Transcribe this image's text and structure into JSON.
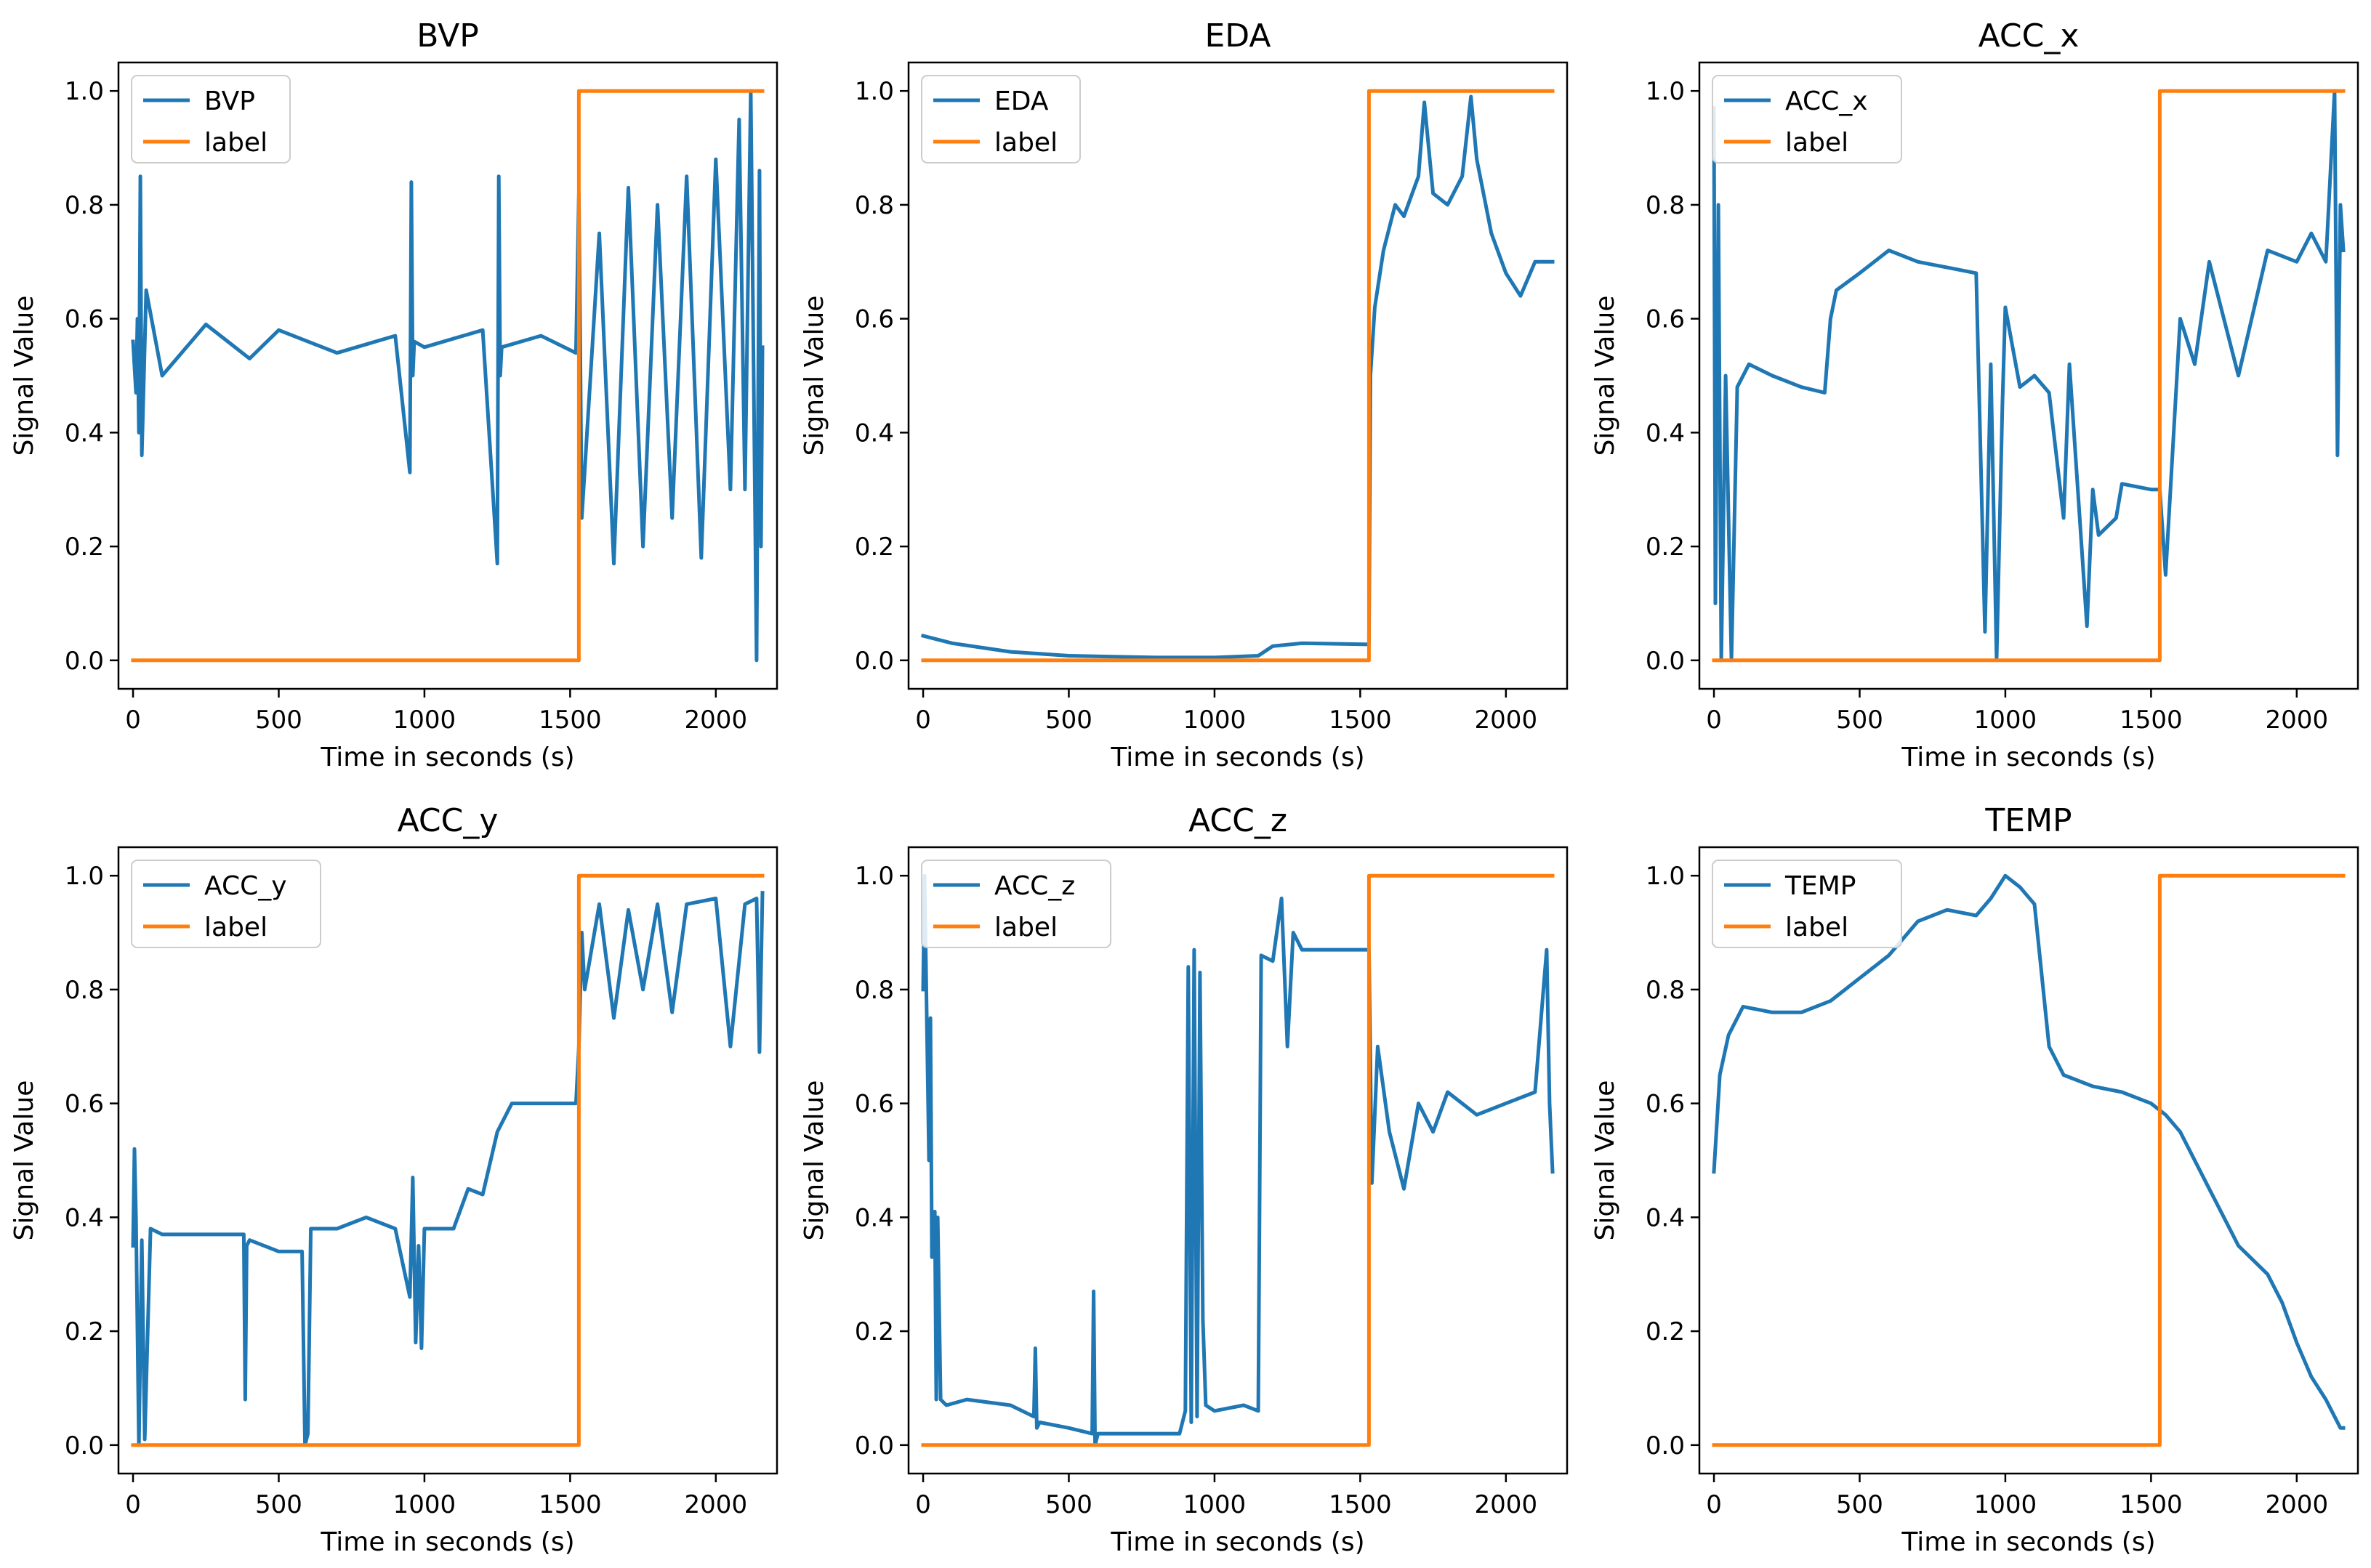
{
  "figure_title": "",
  "colors": {
    "signal": "#1f77b4",
    "label": "#ff7f0e",
    "axes": "#000000",
    "background": "#ffffff"
  },
  "chart_data": [
    {
      "type": "line",
      "title": "BVP",
      "xlabel": "Time in seconds (s)",
      "ylabel": "Signal Value",
      "xlim": [
        -50,
        2210
      ],
      "ylim": [
        -0.05,
        1.05
      ],
      "xticks": [
        0,
        500,
        1000,
        1500,
        2000
      ],
      "yticks": [
        0.0,
        0.2,
        0.4,
        0.6,
        0.8,
        1.0
      ],
      "xtick_labels": [
        "0",
        "500",
        "1000",
        "1500",
        "2000"
      ],
      "ytick_labels": [
        "0.0",
        "0.2",
        "0.4",
        "0.6",
        "0.8",
        "1.0"
      ],
      "legend": [
        "BVP",
        "label"
      ],
      "legend_loc": "upper left",
      "series": [
        {
          "name": "BVP",
          "x": [
            0,
            10,
            15,
            20,
            25,
            30,
            45,
            100,
            250,
            400,
            500,
            700,
            900,
            950,
            955,
            960,
            965,
            1000,
            1200,
            1250,
            1255,
            1260,
            1265,
            1400,
            1520,
            1530,
            1540,
            1600,
            1650,
            1700,
            1750,
            1800,
            1850,
            1900,
            1950,
            2000,
            2050,
            2080,
            2100,
            2120,
            2140,
            2150,
            2155,
            2160
          ],
          "values": [
            0.56,
            0.47,
            0.6,
            0.4,
            0.85,
            0.36,
            0.65,
            0.5,
            0.59,
            0.53,
            0.58,
            0.54,
            0.57,
            0.33,
            0.84,
            0.5,
            0.56,
            0.55,
            0.58,
            0.17,
            0.85,
            0.5,
            0.55,
            0.57,
            0.54,
            0.82,
            0.25,
            0.75,
            0.17,
            0.83,
            0.2,
            0.8,
            0.25,
            0.85,
            0.18,
            0.88,
            0.3,
            0.95,
            0.3,
            1.0,
            0.0,
            0.86,
            0.2,
            0.55
          ]
        },
        {
          "name": "label",
          "x": [
            0,
            1530,
            1530,
            2160
          ],
          "values": [
            0,
            0,
            1,
            1
          ]
        }
      ]
    },
    {
      "type": "line",
      "title": "EDA",
      "xlabel": "Time in seconds (s)",
      "ylabel": "Signal Value",
      "xlim": [
        -50,
        2210
      ],
      "ylim": [
        -0.05,
        1.05
      ],
      "xticks": [
        0,
        500,
        1000,
        1500,
        2000
      ],
      "yticks": [
        0.0,
        0.2,
        0.4,
        0.6,
        0.8,
        1.0
      ],
      "xtick_labels": [
        "0",
        "500",
        "1000",
        "1500",
        "2000"
      ],
      "ytick_labels": [
        "0.0",
        "0.2",
        "0.4",
        "0.6",
        "0.8",
        "1.0"
      ],
      "legend": [
        "EDA",
        "label"
      ],
      "legend_loc": "upper left",
      "series": [
        {
          "name": "EDA",
          "x": [
            0,
            100,
            300,
            500,
            800,
            1000,
            1150,
            1200,
            1300,
            1530,
            1535,
            1550,
            1580,
            1620,
            1650,
            1700,
            1720,
            1750,
            1800,
            1850,
            1880,
            1900,
            1950,
            2000,
            2050,
            2100,
            2160
          ],
          "values": [
            0.043,
            0.03,
            0.015,
            0.008,
            0.005,
            0.005,
            0.008,
            0.025,
            0.03,
            0.028,
            0.5,
            0.62,
            0.72,
            0.8,
            0.78,
            0.85,
            0.98,
            0.82,
            0.8,
            0.85,
            0.99,
            0.88,
            0.75,
            0.68,
            0.64,
            0.7,
            0.7
          ]
        },
        {
          "name": "label",
          "x": [
            0,
            1530,
            1530,
            2160
          ],
          "values": [
            0,
            0,
            1,
            1
          ]
        }
      ]
    },
    {
      "type": "line",
      "title": "ACC_x",
      "xlabel": "Time in seconds (s)",
      "ylabel": "Signal Value",
      "xlim": [
        -50,
        2210
      ],
      "ylim": [
        -0.05,
        1.05
      ],
      "xticks": [
        0,
        500,
        1000,
        1500,
        2000
      ],
      "yticks": [
        0.0,
        0.2,
        0.4,
        0.6,
        0.8,
        1.0
      ],
      "xtick_labels": [
        "0",
        "500",
        "1000",
        "1500",
        "2000"
      ],
      "ytick_labels": [
        "0.0",
        "0.2",
        "0.4",
        "0.6",
        "0.8",
        "1.0"
      ],
      "legend": [
        "ACC_x",
        "label"
      ],
      "legend_loc": "upper left",
      "series": [
        {
          "name": "ACC_x",
          "x": [
            0,
            5,
            15,
            25,
            40,
            60,
            80,
            120,
            200,
            300,
            380,
            400,
            420,
            500,
            550,
            600,
            700,
            800,
            900,
            930,
            950,
            970,
            990,
            1000,
            1050,
            1100,
            1150,
            1200,
            1220,
            1280,
            1300,
            1320,
            1380,
            1400,
            1500,
            1530,
            1550,
            1600,
            1650,
            1700,
            1800,
            1900,
            2000,
            2050,
            2100,
            2130,
            2140,
            2150,
            2160
          ],
          "values": [
            0.97,
            0.1,
            0.8,
            0.0,
            0.5,
            0.0,
            0.48,
            0.52,
            0.5,
            0.48,
            0.47,
            0.6,
            0.65,
            0.68,
            0.7,
            0.72,
            0.7,
            0.69,
            0.68,
            0.05,
            0.52,
            0.0,
            0.45,
            0.62,
            0.48,
            0.5,
            0.47,
            0.25,
            0.52,
            0.06,
            0.3,
            0.22,
            0.25,
            0.31,
            0.3,
            0.3,
            0.15,
            0.6,
            0.52,
            0.7,
            0.5,
            0.72,
            0.7,
            0.75,
            0.7,
            1.0,
            0.36,
            0.8,
            0.72
          ]
        },
        {
          "name": "label",
          "x": [
            0,
            1530,
            1530,
            2160
          ],
          "values": [
            0,
            0,
            1,
            1
          ]
        }
      ]
    },
    {
      "type": "line",
      "title": "ACC_y",
      "xlabel": "Time in seconds (s)",
      "ylabel": "Signal Value",
      "xlim": [
        -50,
        2210
      ],
      "ylim": [
        -0.05,
        1.05
      ],
      "xticks": [
        0,
        500,
        1000,
        1500,
        2000
      ],
      "yticks": [
        0.0,
        0.2,
        0.4,
        0.6,
        0.8,
        1.0
      ],
      "xtick_labels": [
        "0",
        "500",
        "1000",
        "1500",
        "2000"
      ],
      "ytick_labels": [
        "0.0",
        "0.2",
        "0.4",
        "0.6",
        "0.8",
        "1.0"
      ],
      "legend": [
        "ACC_y",
        "label"
      ],
      "legend_loc": "upper left",
      "series": [
        {
          "name": "ACC_y",
          "x": [
            0,
            5,
            10,
            20,
            30,
            40,
            60,
            100,
            200,
            300,
            380,
            385,
            390,
            400,
            500,
            580,
            590,
            600,
            610,
            700,
            800,
            900,
            950,
            960,
            970,
            980,
            990,
            1000,
            1100,
            1150,
            1200,
            1250,
            1300,
            1400,
            1520,
            1530,
            1540,
            1550,
            1600,
            1650,
            1700,
            1750,
            1800,
            1850,
            1900,
            2000,
            2050,
            2100,
            2140,
            2150,
            2160
          ],
          "values": [
            0.35,
            0.52,
            0.4,
            0.0,
            0.36,
            0.01,
            0.38,
            0.37,
            0.37,
            0.37,
            0.37,
            0.08,
            0.35,
            0.36,
            0.34,
            0.34,
            0.0,
            0.02,
            0.38,
            0.38,
            0.4,
            0.38,
            0.26,
            0.47,
            0.18,
            0.35,
            0.17,
            0.38,
            0.38,
            0.45,
            0.44,
            0.55,
            0.6,
            0.6,
            0.6,
            0.7,
            0.9,
            0.8,
            0.95,
            0.75,
            0.94,
            0.8,
            0.95,
            0.76,
            0.95,
            0.96,
            0.7,
            0.95,
            0.96,
            0.69,
            0.97
          ]
        },
        {
          "name": "label",
          "x": [
            0,
            1530,
            1530,
            2160
          ],
          "values": [
            0,
            0,
            1,
            1
          ]
        }
      ]
    },
    {
      "type": "line",
      "title": "ACC_z",
      "xlabel": "Time in seconds (s)",
      "ylabel": "Signal Value",
      "xlim": [
        -50,
        2210
      ],
      "ylim": [
        -0.05,
        1.05
      ],
      "xticks": [
        0,
        500,
        1000,
        1500,
        2000
      ],
      "yticks": [
        0.0,
        0.2,
        0.4,
        0.6,
        0.8,
        1.0
      ],
      "xtick_labels": [
        "0",
        "500",
        "1000",
        "1500",
        "2000"
      ],
      "ytick_labels": [
        "0.0",
        "0.2",
        "0.4",
        "0.6",
        "0.8",
        "1.0"
      ],
      "legend": [
        "ACC_z",
        "label"
      ],
      "legend_loc": "upper left",
      "series": [
        {
          "name": "ACC_z",
          "x": [
            0,
            5,
            20,
            25,
            30,
            40,
            45,
            50,
            60,
            80,
            150,
            300,
            380,
            385,
            390,
            400,
            500,
            580,
            585,
            590,
            600,
            700,
            800,
            880,
            900,
            910,
            920,
            930,
            940,
            950,
            960,
            970,
            1000,
            1100,
            1150,
            1160,
            1200,
            1230,
            1250,
            1270,
            1300,
            1400,
            1520,
            1530,
            1540,
            1560,
            1600,
            1650,
            1700,
            1750,
            1800,
            1900,
            2000,
            2100,
            2140,
            2150,
            2160
          ],
          "values": [
            0.8,
            1.0,
            0.5,
            0.75,
            0.33,
            0.41,
            0.08,
            0.4,
            0.08,
            0.07,
            0.08,
            0.07,
            0.05,
            0.17,
            0.03,
            0.04,
            0.03,
            0.02,
            0.27,
            0.0,
            0.02,
            0.02,
            0.02,
            0.02,
            0.06,
            0.84,
            0.04,
            0.87,
            0.05,
            0.83,
            0.22,
            0.07,
            0.06,
            0.07,
            0.06,
            0.86,
            0.85,
            0.96,
            0.7,
            0.9,
            0.87,
            0.87,
            0.87,
            0.87,
            0.46,
            0.7,
            0.55,
            0.45,
            0.6,
            0.55,
            0.62,
            0.58,
            0.6,
            0.62,
            0.87,
            0.6,
            0.48
          ]
        },
        {
          "name": "label",
          "x": [
            0,
            1530,
            1530,
            2160
          ],
          "values": [
            0,
            0,
            1,
            1
          ]
        }
      ]
    },
    {
      "type": "line",
      "title": "TEMP",
      "xlabel": "Time in seconds (s)",
      "ylabel": "Signal Value",
      "xlim": [
        -50,
        2210
      ],
      "ylim": [
        -0.05,
        1.05
      ],
      "xticks": [
        0,
        500,
        1000,
        1500,
        2000
      ],
      "yticks": [
        0.0,
        0.2,
        0.4,
        0.6,
        0.8,
        1.0
      ],
      "xtick_labels": [
        "0",
        "500",
        "1000",
        "1500",
        "2000"
      ],
      "ytick_labels": [
        "0.0",
        "0.2",
        "0.4",
        "0.6",
        "0.8",
        "1.0"
      ],
      "legend": [
        "TEMP",
        "label"
      ],
      "legend_loc": "upper left",
      "series": [
        {
          "name": "TEMP",
          "x": [
            0,
            20,
            50,
            100,
            200,
            300,
            400,
            500,
            600,
            700,
            800,
            900,
            950,
            1000,
            1050,
            1100,
            1150,
            1200,
            1300,
            1400,
            1500,
            1550,
            1600,
            1700,
            1800,
            1900,
            1950,
            2000,
            2050,
            2100,
            2150,
            2160
          ],
          "values": [
            0.48,
            0.65,
            0.72,
            0.77,
            0.76,
            0.76,
            0.78,
            0.82,
            0.86,
            0.92,
            0.94,
            0.93,
            0.96,
            1.0,
            0.98,
            0.95,
            0.7,
            0.65,
            0.63,
            0.62,
            0.6,
            0.58,
            0.55,
            0.45,
            0.35,
            0.3,
            0.25,
            0.18,
            0.12,
            0.08,
            0.03,
            0.03
          ]
        },
        {
          "name": "label",
          "x": [
            0,
            1530,
            1530,
            2160
          ],
          "values": [
            0,
            0,
            1,
            1
          ]
        }
      ]
    }
  ]
}
